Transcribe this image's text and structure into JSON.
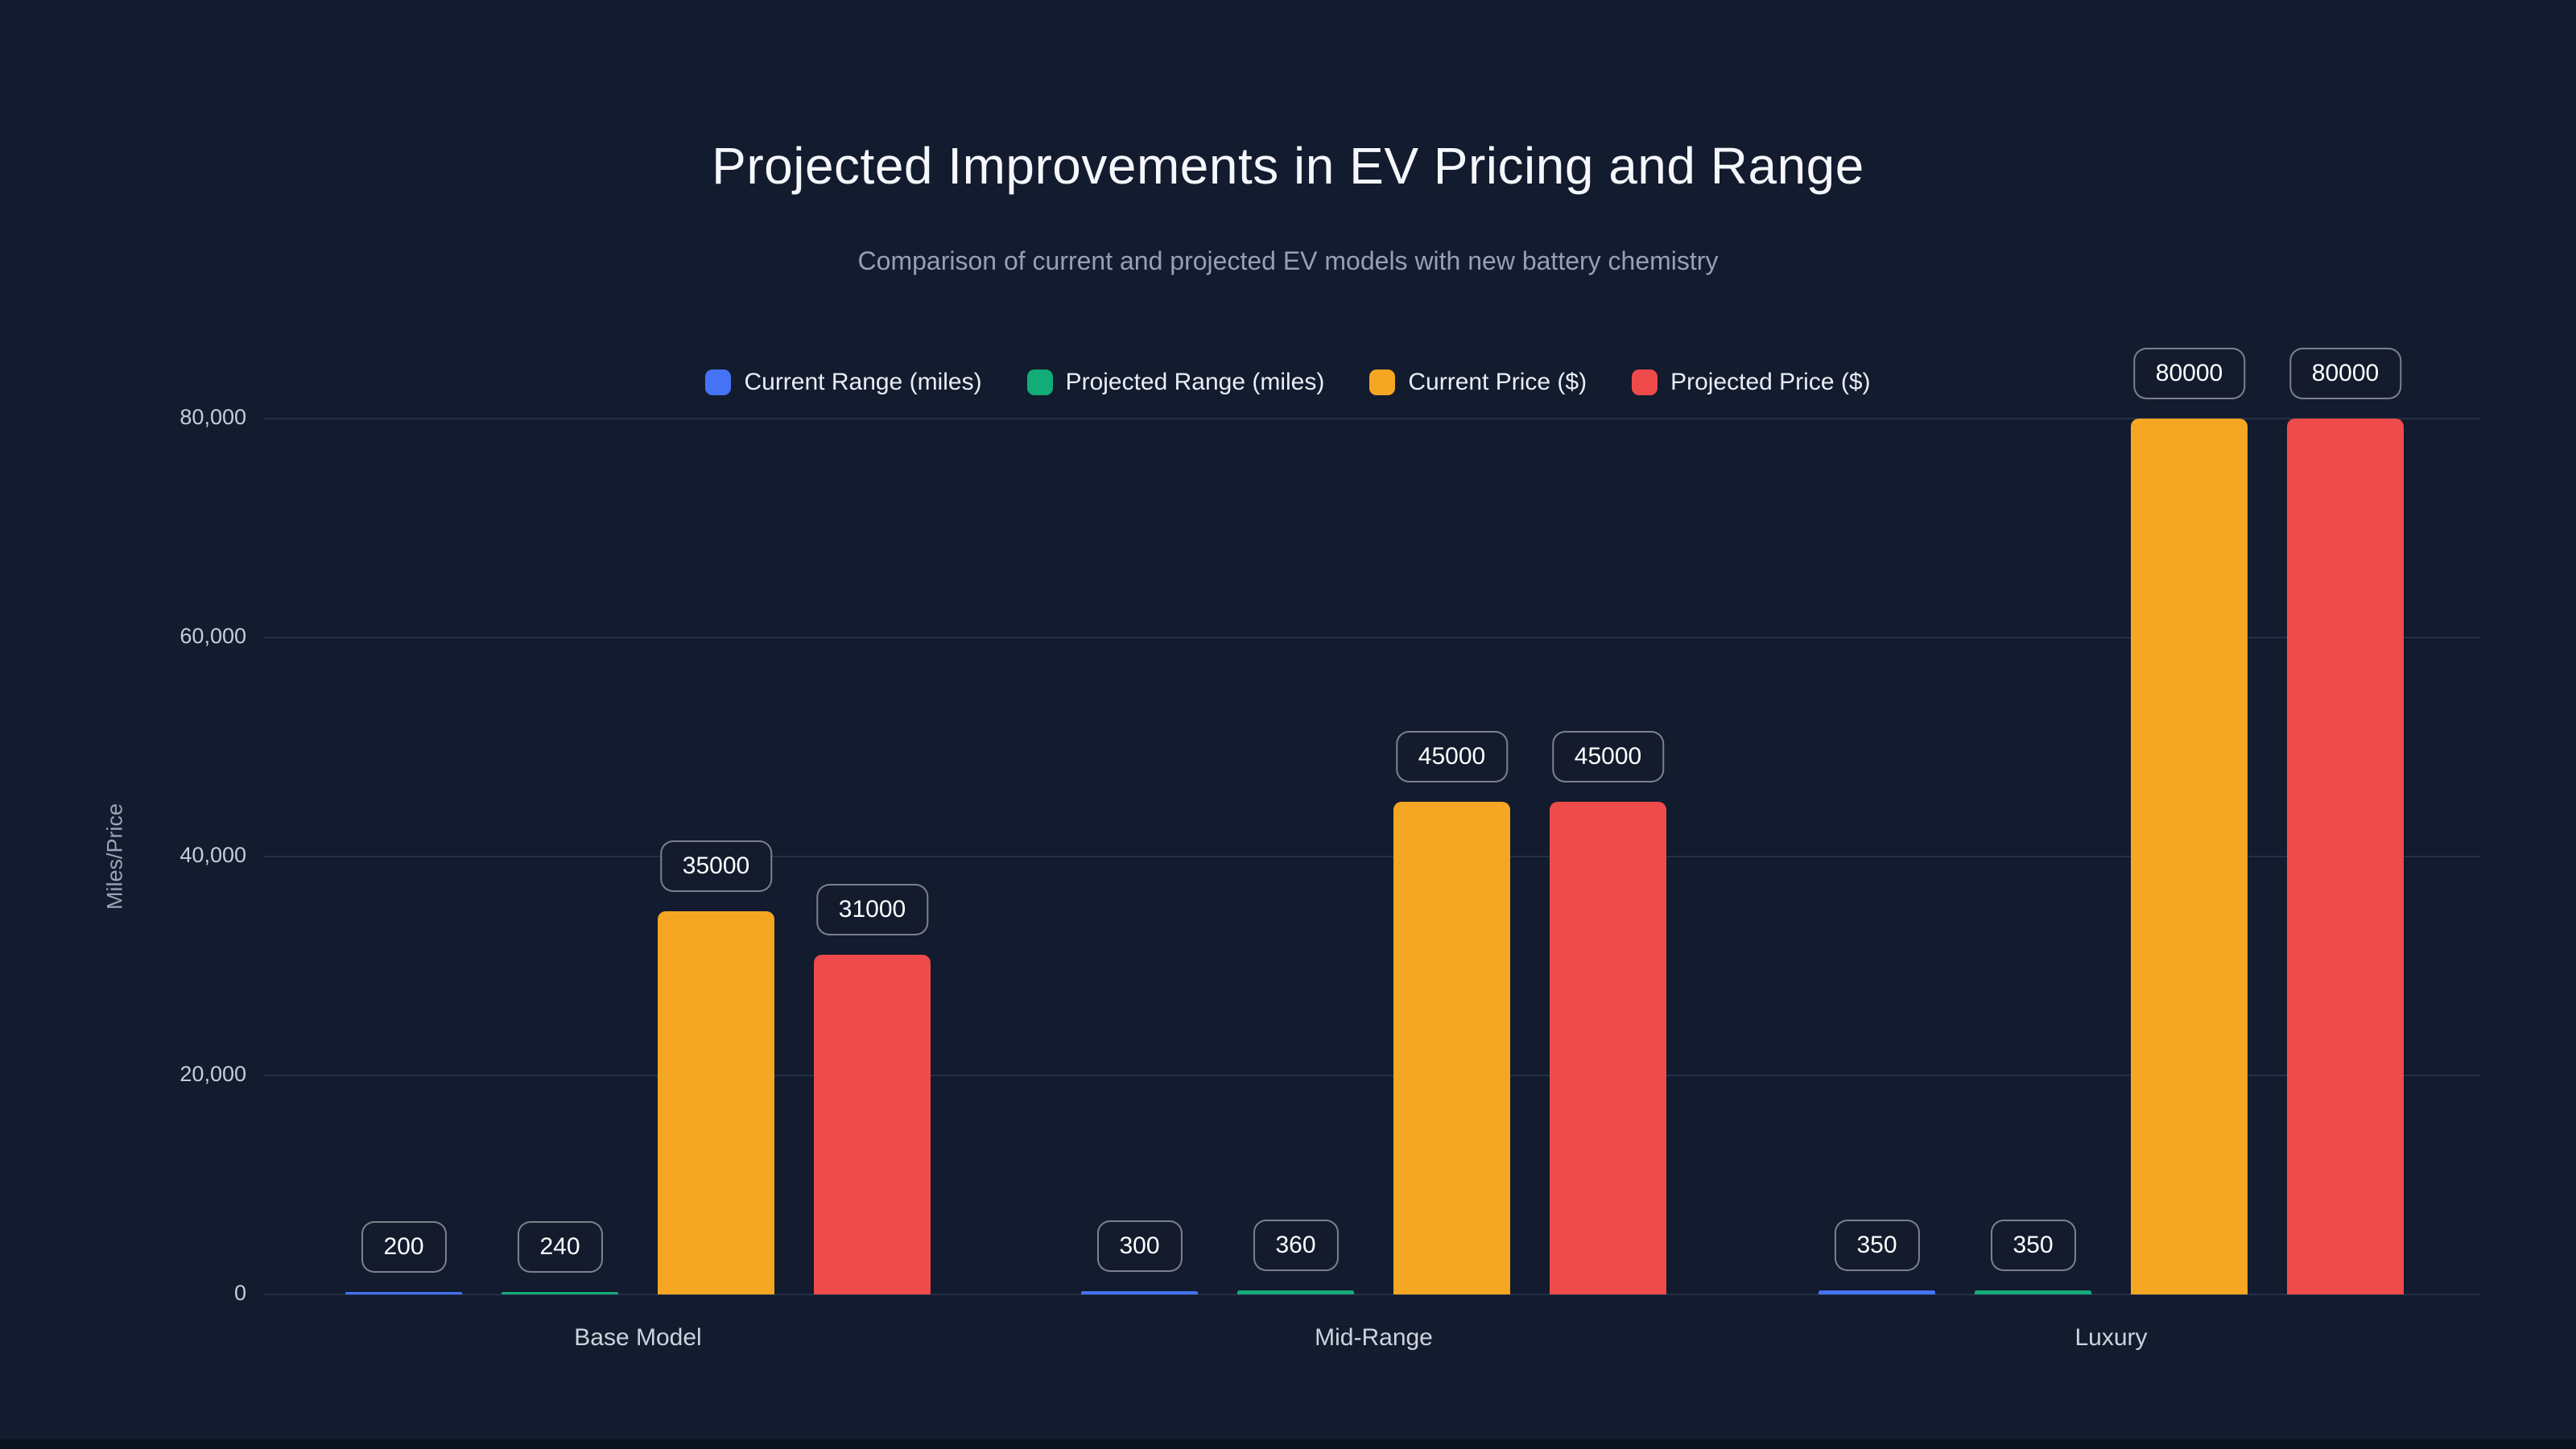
{
  "theme": {
    "background": "#131b2e",
    "grid_color": "#242f47",
    "title_color": "#f4f7fb",
    "subtitle_color": "#95a0b4",
    "axis_text_color": "#c6cdd9",
    "value_label_text_color": "#ffffff"
  },
  "chart_data": {
    "type": "bar",
    "title": "Projected Improvements in EV Pricing and Range",
    "subtitle": "Comparison of current and projected EV models with new battery chemistry",
    "xlabel": "",
    "ylabel": "Miles/Price",
    "categories": [
      "Base Model",
      "Mid-Range",
      "Luxury"
    ],
    "series": [
      {
        "name": "Current Range (miles)",
        "color": "#4573f5",
        "values": [
          200,
          300,
          350
        ]
      },
      {
        "name": "Projected Range (miles)",
        "color": "#13ab77",
        "values": [
          240,
          360,
          350
        ]
      },
      {
        "name": "Current Price ($)",
        "color": "#f5a623",
        "values": [
          35000,
          45000,
          80000
        ]
      },
      {
        "name": "Projected Price ($)",
        "color": "#ef4b4b",
        "values": [
          31000,
          45000,
          80000
        ]
      }
    ],
    "y_ticks": [
      0,
      20000,
      40000,
      60000,
      80000
    ],
    "y_tick_labels": [
      "0",
      "20,000",
      "40,000",
      "60,000",
      "80,000"
    ],
    "ylim": [
      0,
      86600
    ],
    "grid": true,
    "legend_position": "top",
    "value_labels": true
  }
}
